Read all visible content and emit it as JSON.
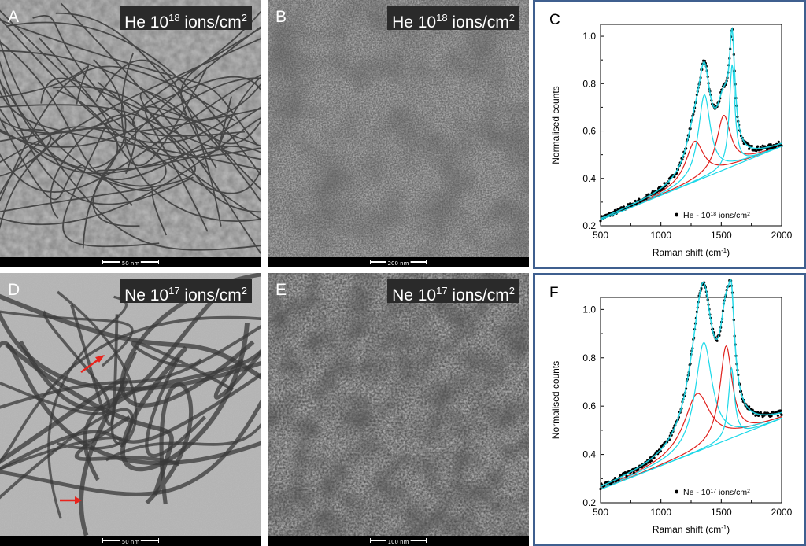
{
  "panels": {
    "A": {
      "letter": "A",
      "label_base": "He 10",
      "label_exp": "18",
      "label_unit": " ions/cm",
      "label_sq": "2",
      "scale": "50 nm"
    },
    "B": {
      "letter": "B",
      "label_base": "He 10",
      "label_exp": "18",
      "label_unit": " ions/cm",
      "label_sq": "2",
      "scale": "200 nm"
    },
    "D": {
      "letter": "D",
      "label_base": "Ne 10",
      "label_exp": "17",
      "label_unit": " ions/cm",
      "label_sq": "2",
      "scale": "50 nm"
    },
    "E": {
      "letter": "E",
      "label_base": "Ne 10",
      "label_exp": "17",
      "label_unit": " ions/cm",
      "label_sq": "2",
      "scale": "100 nm"
    }
  },
  "chart_data": [
    {
      "type": "scatter",
      "panel_letter": "C",
      "xlabel": "Raman shift (cm",
      "xlabel_sup": "-1",
      "xlabel_end": ")",
      "ylabel": "Normalised counts",
      "xlim": [
        500,
        2000
      ],
      "ylim": [
        0.2,
        1.05
      ],
      "xticks": [
        500,
        1000,
        1500,
        2000
      ],
      "yticks": [
        0.2,
        0.4,
        0.6,
        0.8,
        1.0
      ],
      "ytick_labels": [
        "0.2",
        "0.4",
        "0.6",
        "0.8",
        "1.0"
      ],
      "legend": "He - 10",
      "legend_sup": "18",
      "legend_end": " ions/cm",
      "legend_sq": "2",
      "legend_position": "bottom-right",
      "baseline": {
        "a": 0.225,
        "b": 0.000207
      },
      "peaks": [
        {
          "center": 1280,
          "height": 0.17,
          "width": 180,
          "color": "#e0201c"
        },
        {
          "center": 1360,
          "height": 0.35,
          "width": 120,
          "color": "#1ad8e8"
        },
        {
          "center": 1520,
          "height": 0.23,
          "width": 140,
          "color": "#e0201c"
        },
        {
          "center": 1590,
          "height": 0.43,
          "width": 55,
          "color": "#1ad8e8"
        }
      ],
      "fit_color": "#1ad8e8",
      "data_color": "#000000"
    },
    {
      "type": "scatter",
      "panel_letter": "F",
      "xlabel": "Raman shift (cm",
      "xlabel_sup": "-1",
      "xlabel_end": ")",
      "ylabel": "Normalised counts",
      "xlim": [
        500,
        2000
      ],
      "ylim": [
        0.2,
        1.05
      ],
      "xticks": [
        500,
        1000,
        1500,
        2000
      ],
      "yticks": [
        0.2,
        0.4,
        0.6,
        0.8,
        1.0
      ],
      "ytick_labels": [
        "0.2",
        "0.4",
        "0.6",
        "0.8",
        "1.0"
      ],
      "legend": "Ne - 10",
      "legend_sup": "17",
      "legend_end": " ions/cm",
      "legend_sq": "2",
      "legend_position": "bottom-right",
      "baseline": {
        "a": 0.255,
        "b": 0.000196
      },
      "peaks": [
        {
          "center": 1300,
          "height": 0.24,
          "width": 260,
          "color": "#e0201c"
        },
        {
          "center": 1355,
          "height": 0.44,
          "width": 170,
          "color": "#1ad8e8"
        },
        {
          "center": 1540,
          "height": 0.39,
          "width": 125,
          "color": "#e0201c"
        },
        {
          "center": 1585,
          "height": 0.29,
          "width": 60,
          "color": "#1ad8e8"
        }
      ],
      "fit_color": "#1ad8e8",
      "data_color": "#000000"
    }
  ]
}
